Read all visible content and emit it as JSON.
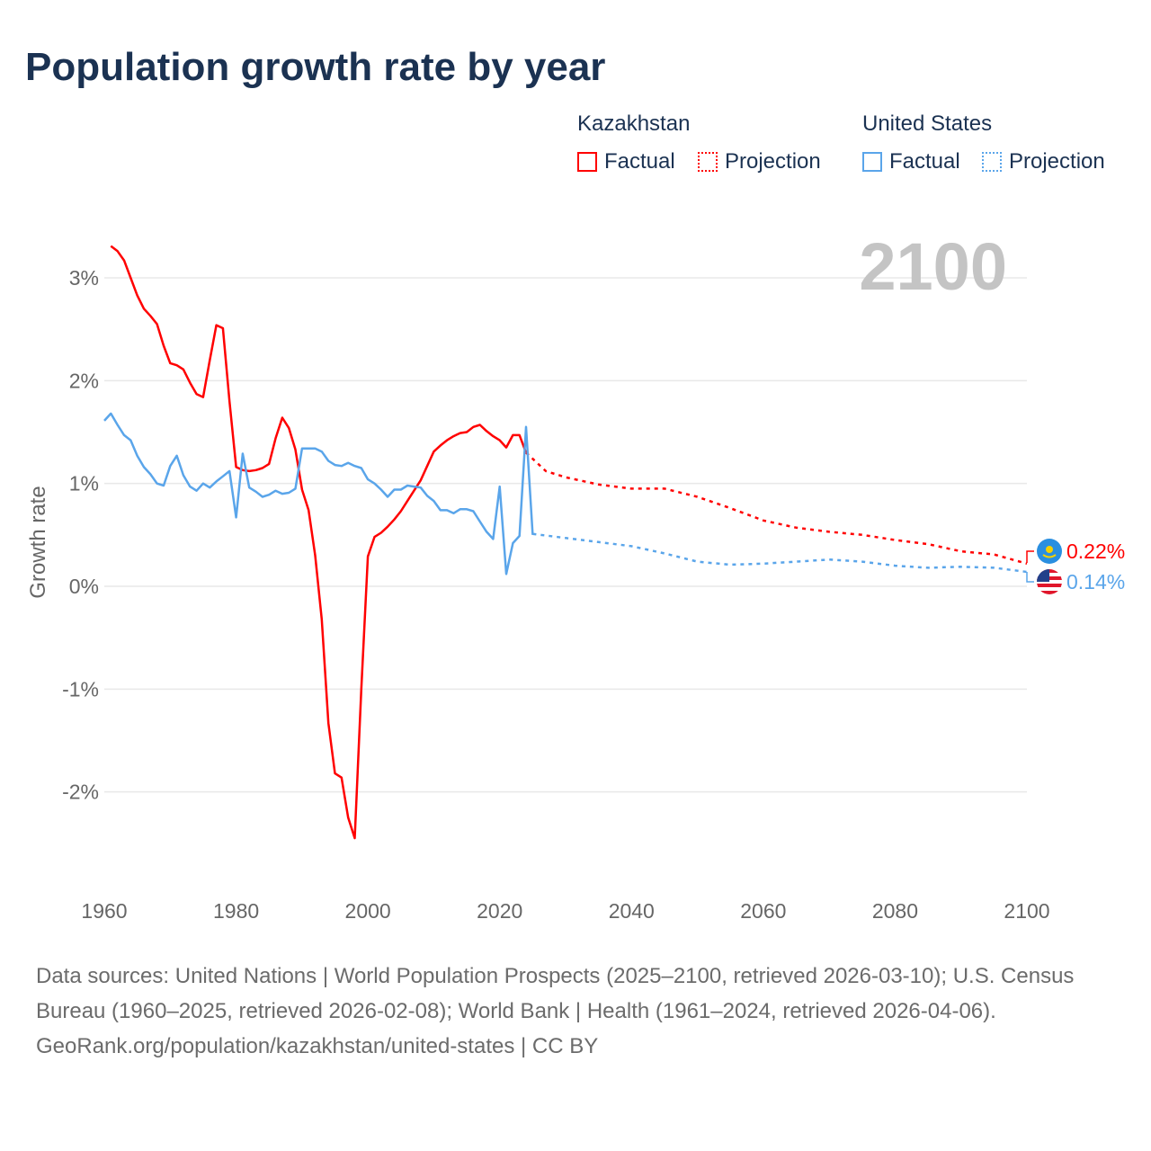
{
  "title": "Population growth rate by year",
  "legend": {
    "groups": [
      {
        "name": "Kazakhstan",
        "factual": "Factual",
        "projection": "Projection",
        "color": "#ff0000"
      },
      {
        "name": "United States",
        "factual": "Factual",
        "projection": "Projection",
        "color": "#5aa5ea"
      }
    ]
  },
  "current_year_label": "2100",
  "end_labels": {
    "kazakhstan": "0.22%",
    "united_states": "0.14%"
  },
  "footer": {
    "sources": "Data sources: United Nations | World Population Prospects (2025–2100, retrieved 2026-03-10); U.S. Census Bureau (1960–2025, retrieved 2026-02-08); World Bank | Health (1961–2024, retrieved 2026-04-06).",
    "credit": "GeoRank.org/population/kazakhstan/united-states | CC BY"
  },
  "chart_data": {
    "type": "line",
    "title": "Population growth rate by year",
    "xlabel": "",
    "ylabel": "Growth rate",
    "xlim": [
      1960,
      2100
    ],
    "ylim": [
      -2.6,
      3.4
    ],
    "x_ticks": [
      1960,
      1980,
      2000,
      2020,
      2040,
      2060,
      2080,
      2100
    ],
    "x_tick_labels": [
      "1960",
      "1980",
      "2000",
      "2020",
      "2040",
      "2060",
      "2080",
      "2100"
    ],
    "y_ticks": [
      3,
      2,
      1,
      0,
      -1,
      -2
    ],
    "y_tick_labels": [
      "3%",
      "2%",
      "1%",
      "0%",
      "-1%",
      "-2%"
    ],
    "grid": true,
    "legend_position": "top-right",
    "series": [
      {
        "name": "Kazakhstan Factual",
        "color": "#ff0000",
        "style": "solid",
        "x": [
          1961,
          1962,
          1963,
          1964,
          1965,
          1966,
          1967,
          1968,
          1969,
          1970,
          1971,
          1972,
          1973,
          1974,
          1975,
          1976,
          1977,
          1978,
          1979,
          1980,
          1981,
          1982,
          1983,
          1984,
          1985,
          1986,
          1987,
          1988,
          1989,
          1990,
          1991,
          1992,
          1993,
          1994,
          1995,
          1996,
          1997,
          1998,
          1999,
          2000,
          2001,
          2002,
          2003,
          2004,
          2005,
          2006,
          2007,
          2008,
          2009,
          2010,
          2011,
          2012,
          2013,
          2014,
          2015,
          2016,
          2017,
          2018,
          2019,
          2020,
          2021,
          2022,
          2023,
          2024
        ],
        "y": [
          3.31,
          3.26,
          3.17,
          3.0,
          2.83,
          2.7,
          2.63,
          2.55,
          2.34,
          2.17,
          2.15,
          2.11,
          1.98,
          1.87,
          1.84,
          2.2,
          2.54,
          2.51,
          1.8,
          1.16,
          1.13,
          1.12,
          1.13,
          1.15,
          1.19,
          1.44,
          1.64,
          1.54,
          1.33,
          0.94,
          0.74,
          0.3,
          -0.32,
          -1.33,
          -1.82,
          -1.86,
          -2.25,
          -2.45,
          -1.0,
          0.29,
          0.48,
          0.52,
          0.58,
          0.65,
          0.73,
          0.83,
          0.93,
          1.03,
          1.17,
          1.31,
          1.37,
          1.42,
          1.46,
          1.49,
          1.5,
          1.55,
          1.57,
          1.51,
          1.46,
          1.42,
          1.35,
          1.47,
          1.47,
          1.3
        ]
      },
      {
        "name": "Kazakhstan Projection",
        "color": "#ff0000",
        "style": "dotted",
        "x": [
          2024,
          2025,
          2027,
          2030,
          2035,
          2040,
          2045,
          2050,
          2055,
          2060,
          2065,
          2070,
          2075,
          2080,
          2085,
          2090,
          2095,
          2100
        ],
        "y": [
          1.3,
          1.24,
          1.12,
          1.06,
          0.99,
          0.95,
          0.95,
          0.87,
          0.76,
          0.64,
          0.57,
          0.53,
          0.5,
          0.45,
          0.41,
          0.34,
          0.31,
          0.22
        ]
      },
      {
        "name": "United States Factual",
        "color": "#5aa5ea",
        "style": "solid",
        "x": [
          1960,
          1961,
          1962,
          1963,
          1964,
          1965,
          1966,
          1967,
          1968,
          1969,
          1970,
          1971,
          1972,
          1973,
          1974,
          1975,
          1976,
          1977,
          1978,
          1979,
          1980,
          1981,
          1982,
          1983,
          1984,
          1985,
          1986,
          1987,
          1988,
          1989,
          1990,
          1991,
          1992,
          1993,
          1994,
          1995,
          1996,
          1997,
          1998,
          1999,
          2000,
          2001,
          2002,
          2003,
          2004,
          2005,
          2006,
          2007,
          2008,
          2009,
          2010,
          2011,
          2012,
          2013,
          2014,
          2015,
          2016,
          2017,
          2018,
          2019,
          2020,
          2021,
          2022,
          2023,
          2024,
          2025
        ],
        "y": [
          1.61,
          1.68,
          1.57,
          1.47,
          1.42,
          1.27,
          1.16,
          1.09,
          1.0,
          0.98,
          1.17,
          1.27,
          1.08,
          0.97,
          0.93,
          1.0,
          0.96,
          1.02,
          1.07,
          1.12,
          0.67,
          1.29,
          0.96,
          0.92,
          0.87,
          0.89,
          0.93,
          0.9,
          0.91,
          0.95,
          1.34,
          1.34,
          1.34,
          1.31,
          1.22,
          1.18,
          1.17,
          1.2,
          1.17,
          1.15,
          1.04,
          1.0,
          0.94,
          0.87,
          0.94,
          0.94,
          0.98,
          0.97,
          0.96,
          0.88,
          0.83,
          0.74,
          0.74,
          0.71,
          0.75,
          0.75,
          0.73,
          0.63,
          0.53,
          0.46,
          0.97,
          0.12,
          0.42,
          0.49,
          1.55,
          0.5
        ]
      },
      {
        "name": "United States Projection",
        "color": "#5aa5ea",
        "style": "dotted",
        "x": [
          2025,
          2030,
          2035,
          2040,
          2045,
          2050,
          2055,
          2060,
          2065,
          2070,
          2075,
          2080,
          2085,
          2090,
          2095,
          2100
        ],
        "y": [
          0.51,
          0.47,
          0.43,
          0.39,
          0.32,
          0.24,
          0.21,
          0.22,
          0.24,
          0.26,
          0.24,
          0.2,
          0.18,
          0.19,
          0.18,
          0.14
        ]
      }
    ]
  }
}
